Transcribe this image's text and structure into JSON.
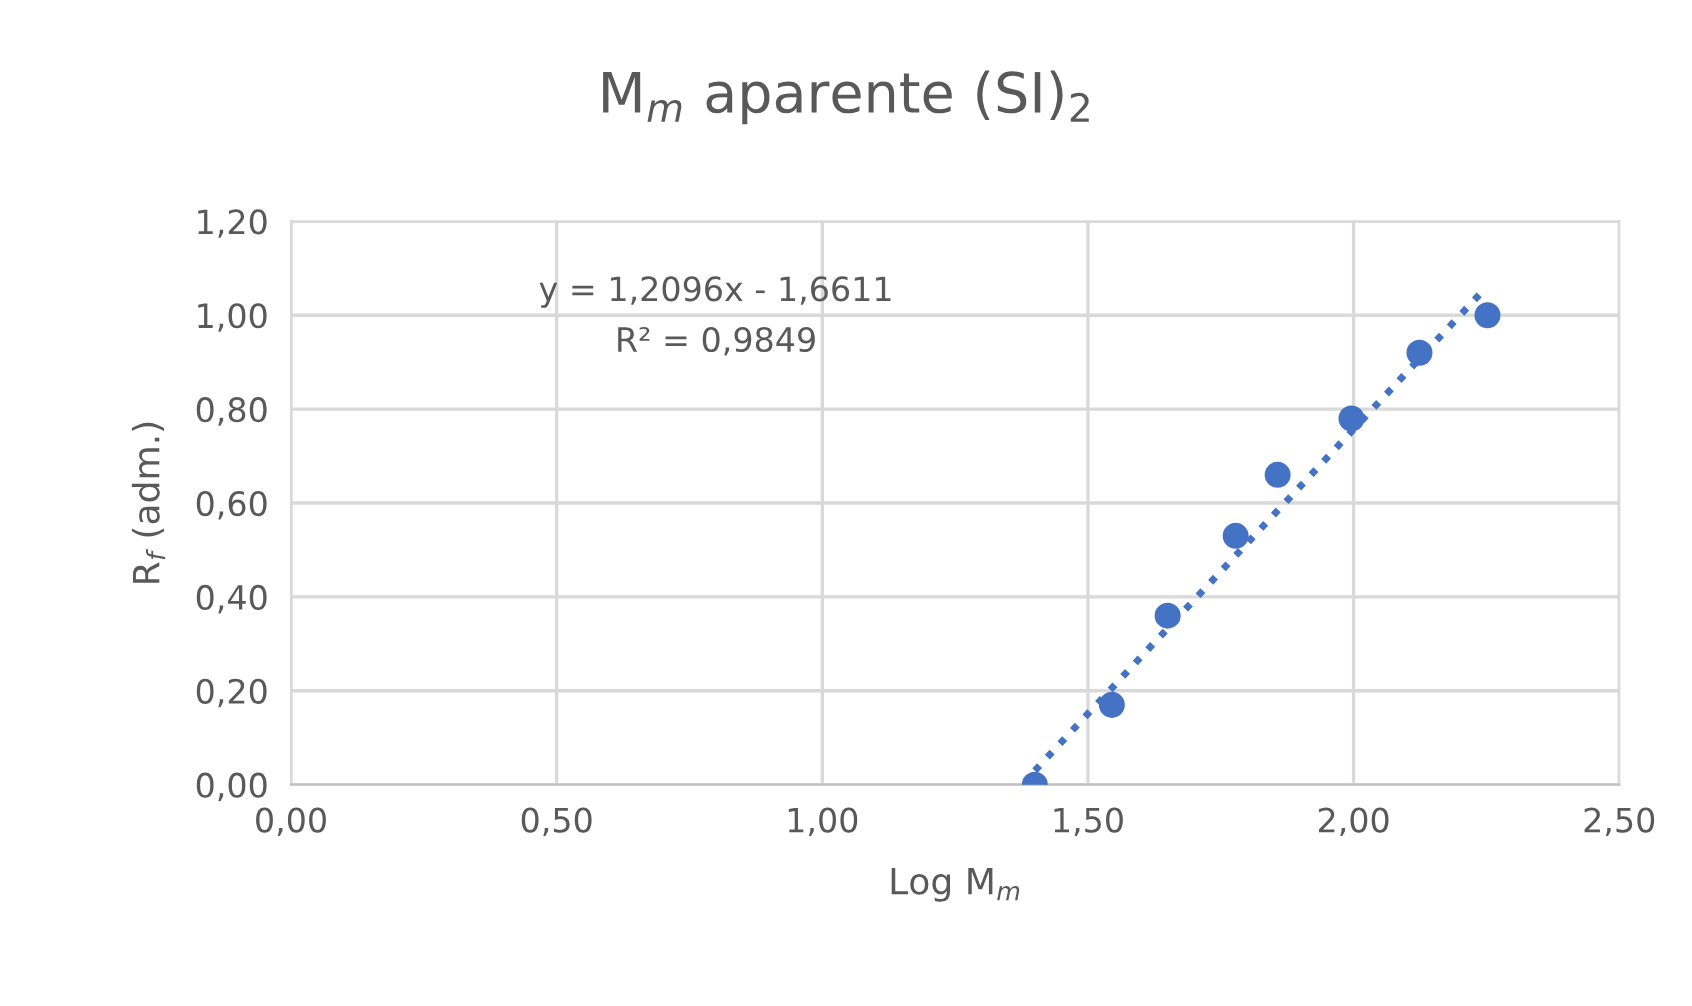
{
  "chart_data": {
    "type": "scatter",
    "title": "M$_{m}$ aparente (SI)$_{2}$",
    "xlabel": "Log M$_{m}$",
    "ylabel": "R$_{f}$ (adm.)",
    "annotations": [
      "y = 1,2096x - 1,6611",
      "R² = 0,9849"
    ],
    "series": [
      {
        "color": "#4472c4",
        "marker": "circle",
        "x": [
          1.4,
          1.545,
          1.65,
          1.778,
          1.857,
          1.996,
          2.124,
          2.252
        ],
        "values": [
          0.0,
          0.17,
          0.36,
          0.53,
          0.66,
          0.78,
          0.92,
          1.0
        ]
      },
      {
        "type": "line",
        "color": "#4472c4",
        "marker": "none",
        "line_style": "dotted",
        "x": [
          1.4,
          2.25
        ],
        "values": [
          0.03,
          1.06
        ]
      }
    ],
    "xlim": [
      0,
      2.5
    ],
    "ylim": [
      0,
      1.2
    ],
    "xticks": [
      {
        "value": 0,
        "label": "0,00"
      },
      {
        "value": 0.5,
        "label": "0,50"
      },
      {
        "value": 1.0,
        "label": "1,00"
      },
      {
        "value": 1.5,
        "label": "1,50"
      },
      {
        "value": 2.0,
        "label": "2,00"
      },
      {
        "value": 2.5,
        "label": "2,50"
      }
    ],
    "yticks": [
      {
        "value": 0,
        "label": "0,00"
      },
      {
        "value": 0.2,
        "label": "0,20"
      },
      {
        "value": 0.4,
        "label": "0,40"
      },
      {
        "value": 0.6,
        "label": "0,60"
      },
      {
        "value": 0.8,
        "label": "0,80"
      },
      {
        "value": 1.0,
        "label": "1,00"
      },
      {
        "value": 1.2,
        "label": "1,20"
      }
    ],
    "grid": true
  }
}
